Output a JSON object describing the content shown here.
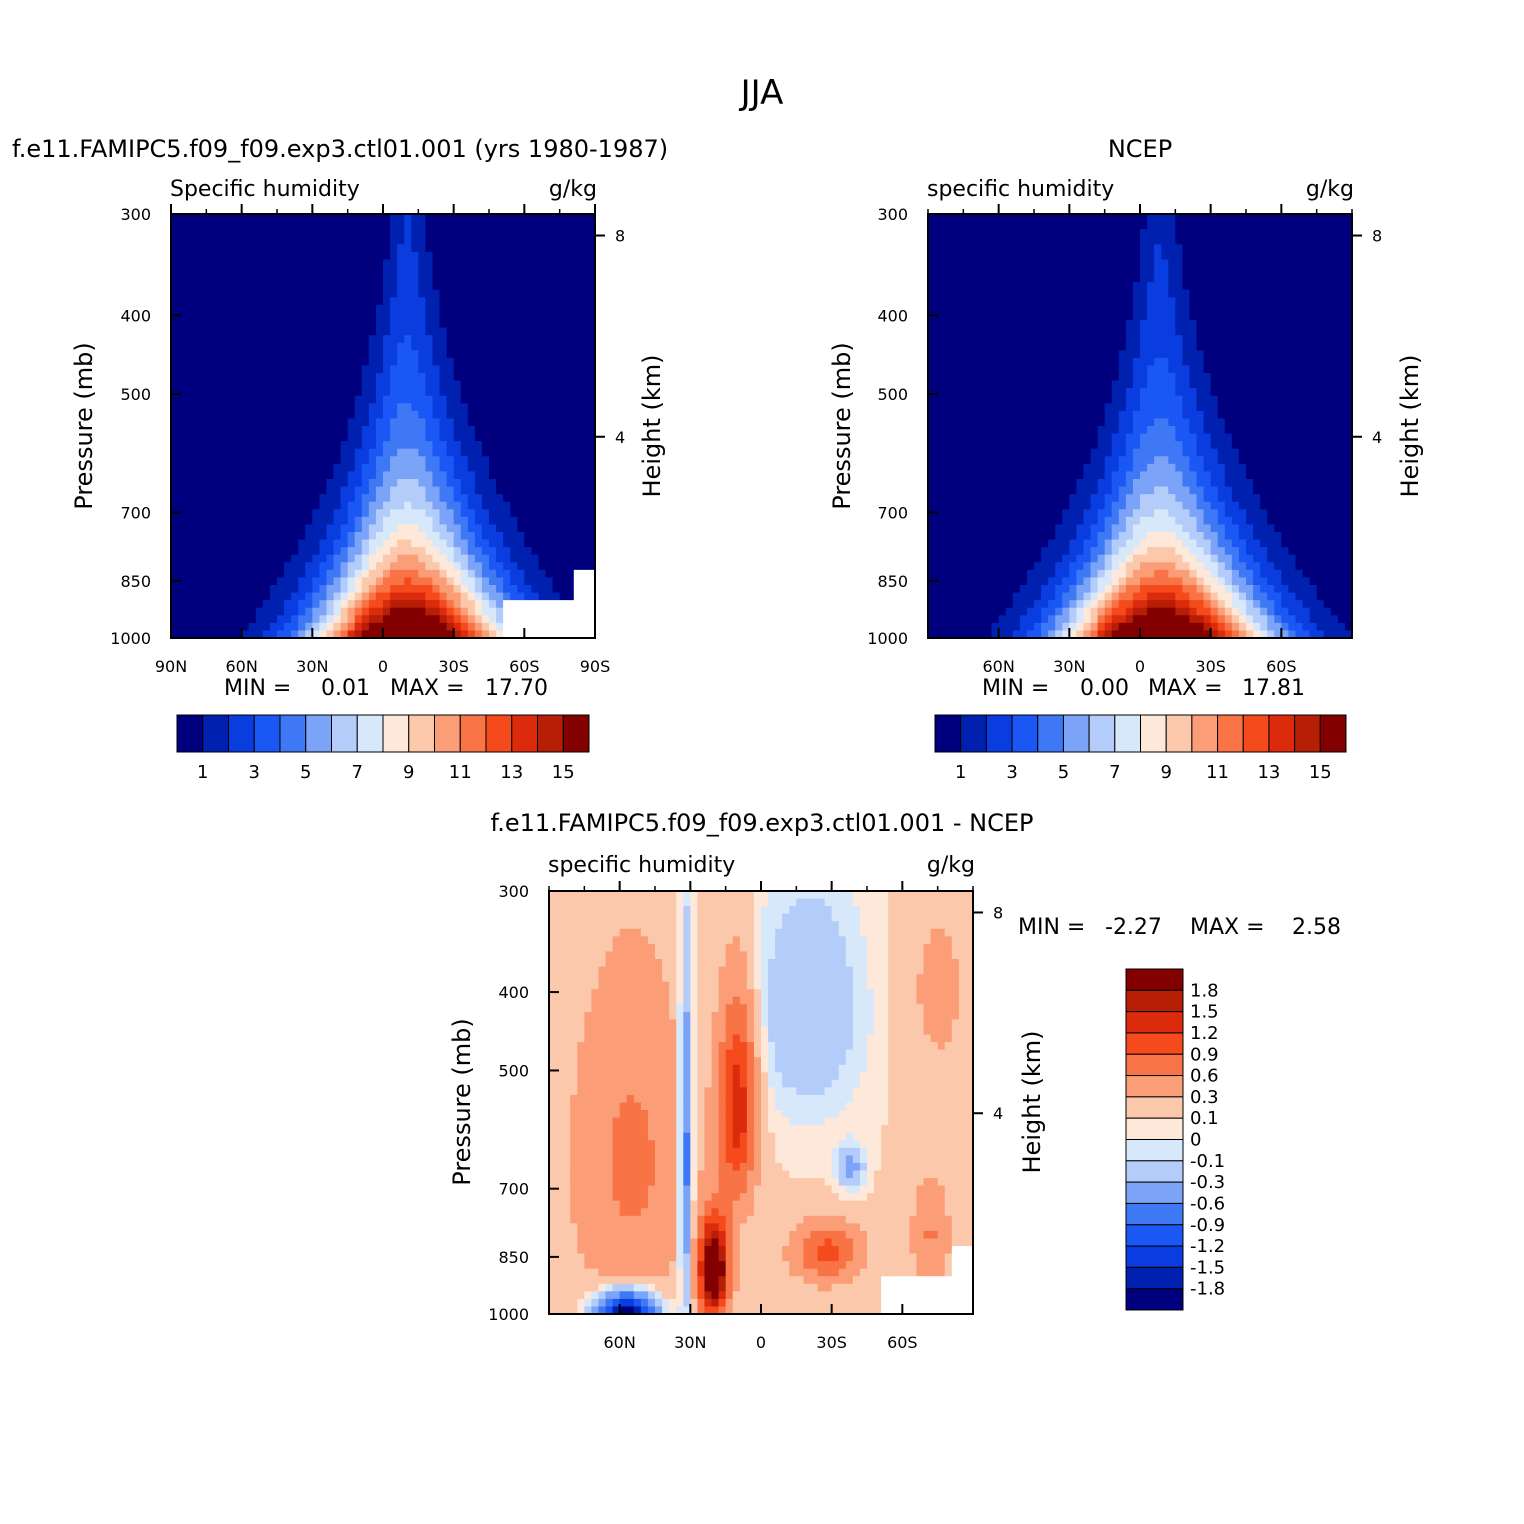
{
  "figure": {
    "title": "JJA"
  },
  "colors": {
    "levels": [
      "#00007f",
      "#0020b0",
      "#0a3de0",
      "#1b57f5",
      "#3f78f5",
      "#7ba3f7",
      "#b4ccfa",
      "#d7e8fb",
      "#fde8d9",
      "#fcc8ac",
      "#fb9e78",
      "#f87345",
      "#f54b1c",
      "#db2a0c",
      "#b71e06",
      "#820000"
    ]
  },
  "chart_data": [
    {
      "id": "model",
      "type": "heatmap",
      "subtitle": "f.e11.FAMIPC5.f09_f09.exp3.ctl01.001 (yrs 1980-1987)",
      "left_label": "Specific humidity",
      "right_label": "g/kg",
      "ylabel": "Pressure (mb)",
      "y2label": "Height (km)",
      "xlim": [
        90,
        -90
      ],
      "ylim": [
        1000,
        300
      ],
      "x_tick_labels": [
        "90N",
        "60N",
        "30N",
        "0",
        "30S",
        "60S",
        "90S"
      ],
      "x_tick_values": [
        90,
        60,
        30,
        0,
        -30,
        -60,
        -90
      ],
      "y_tick_labels": [
        "300",
        "400",
        "500",
        "700",
        "850",
        "1000"
      ],
      "y_tick_values": [
        300,
        400,
        500,
        700,
        850,
        1000
      ],
      "height_tick_labels": [
        "8",
        "4"
      ],
      "height_tick_values": [
        8,
        4
      ],
      "min_label": "MIN =",
      "min_value": "0.01",
      "max_label": "MAX =",
      "max_value": "17.70",
      "field": {
        "center": -10,
        "width_low": 38,
        "width_high": 7,
        "depth": 0.44,
        "vmax": 17.7,
        "cutoff_lat": -50
      },
      "colorbar": {
        "orientation": "horizontal",
        "levels": [
          1,
          2,
          3,
          4,
          5,
          6,
          7,
          8,
          9,
          10,
          11,
          12,
          13,
          14,
          15
        ],
        "tick_labels": [
          "1",
          "3",
          "5",
          "7",
          "9",
          "11",
          "13",
          "15"
        ]
      }
    },
    {
      "id": "obs",
      "type": "heatmap",
      "subtitle": "NCEP",
      "left_label": "specific humidity",
      "right_label": "g/kg",
      "ylabel": "Pressure (mb)",
      "y2label": "Height (km)",
      "xlim": [
        90,
        -90
      ],
      "ylim": [
        1000,
        300
      ],
      "x_tick_labels": [
        "60N",
        "30N",
        "0",
        "30S",
        "60S"
      ],
      "x_tick_values": [
        60,
        30,
        0,
        -30,
        -60
      ],
      "y_tick_labels": [
        "300",
        "400",
        "500",
        "700",
        "850",
        "1000"
      ],
      "y_tick_values": [
        300,
        400,
        500,
        700,
        850,
        1000
      ],
      "height_tick_labels": [
        "8",
        "4"
      ],
      "height_tick_values": [
        8,
        4
      ],
      "min_label": "MIN =",
      "min_value": "0.00",
      "max_label": "MAX =",
      "max_value": "17.81",
      "field": {
        "center": -8,
        "width_low": 40,
        "width_high": 7,
        "depth": 0.42,
        "vmax": 17.81,
        "cutoff_lat": -999
      },
      "colorbar": {
        "orientation": "horizontal",
        "levels": [
          1,
          2,
          3,
          4,
          5,
          6,
          7,
          8,
          9,
          10,
          11,
          12,
          13,
          14,
          15
        ],
        "tick_labels": [
          "1",
          "3",
          "5",
          "7",
          "9",
          "11",
          "13",
          "15"
        ]
      }
    },
    {
      "id": "diff",
      "type": "heatmap",
      "subtitle": "f.e11.FAMIPC5.f09_f09.exp3.ctl01.001 - NCEP",
      "left_label": "specific humidity",
      "right_label": "g/kg",
      "ylabel": "Pressure (mb)",
      "y2label": "Height (km)",
      "xlim": [
        90,
        -90
      ],
      "ylim": [
        1000,
        300
      ],
      "x_tick_labels": [
        "60N",
        "30N",
        "0",
        "30S",
        "60S"
      ],
      "x_tick_values": [
        60,
        30,
        0,
        -30,
        -60
      ],
      "y_tick_labels": [
        "300",
        "400",
        "500",
        "700",
        "850",
        "1000"
      ],
      "y_tick_values": [
        300,
        400,
        500,
        700,
        850,
        1000
      ],
      "height_tick_labels": [
        "8",
        "4"
      ],
      "height_tick_values": [
        8,
        4
      ],
      "min_label": "MIN =",
      "min_value": "-2.27",
      "max_label": "MAX =",
      "max_value": "2.58",
      "field": {
        "cutoff_lat": -50,
        "blobs": [
          {
            "lat": 20,
            "p": 880,
            "slat": 6,
            "sp": 120,
            "amp": 2.4
          },
          {
            "lat": 10,
            "p": 550,
            "slat": 8,
            "sp": 160,
            "amp": 1.3
          },
          {
            "lat": -28,
            "p": 840,
            "slat": 14,
            "sp": 70,
            "amp": 0.9
          },
          {
            "lat": 32,
            "p": 650,
            "slat": 3,
            "sp": 300,
            "amp": -1.0
          },
          {
            "lat": 57,
            "p": 1000,
            "slat": 12,
            "sp": 60,
            "amp": -2.2
          },
          {
            "lat": 55,
            "p": 650,
            "slat": 25,
            "sp": 300,
            "amp": 0.55
          },
          {
            "lat": -20,
            "p": 420,
            "slat": 25,
            "sp": 150,
            "amp": -0.4
          },
          {
            "lat": -38,
            "p": 660,
            "slat": 6,
            "sp": 40,
            "amp": -0.5
          },
          {
            "lat": -72,
            "p": 800,
            "slat": 8,
            "sp": 120,
            "amp": 0.5
          },
          {
            "lat": -75,
            "p": 400,
            "slat": 15,
            "sp": 120,
            "amp": 0.25
          }
        ]
      },
      "colorbar": {
        "orientation": "vertical",
        "levels": [
          -1.8,
          -1.5,
          -1.2,
          -0.9,
          -0.6,
          -0.3,
          -0.1,
          0,
          0.1,
          0.3,
          0.6,
          0.9,
          1.2,
          1.5,
          1.8
        ],
        "tick_labels": [
          "1.8",
          "1.5",
          "1.2",
          "0.9",
          "0.6",
          "0.3",
          "0.1",
          "0",
          "-0.1",
          "-0.3",
          "-0.6",
          "-0.9",
          "-1.2",
          "-1.5",
          "-1.8"
        ]
      }
    }
  ]
}
